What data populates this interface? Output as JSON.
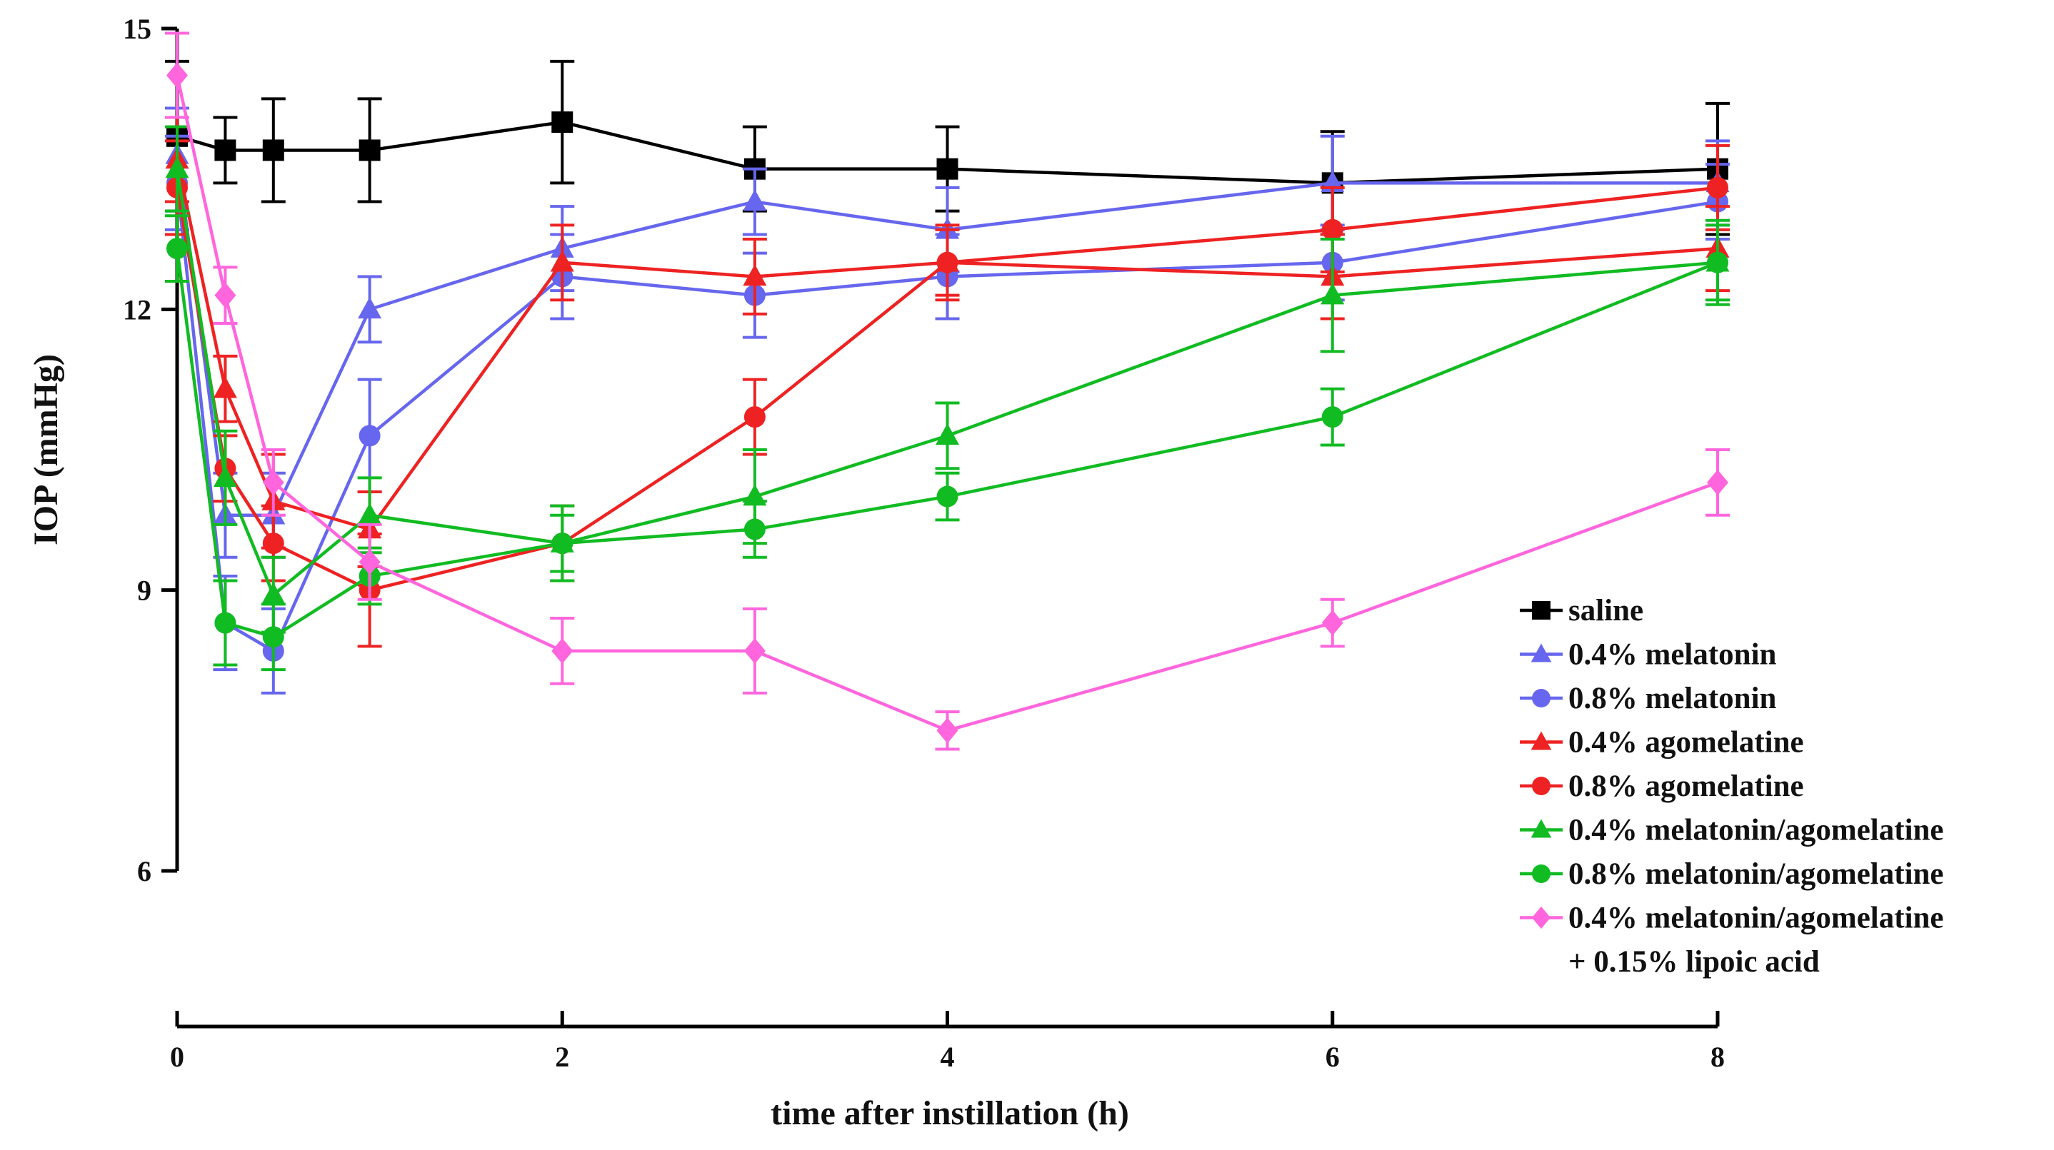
{
  "chart_data": {
    "type": "line",
    "title": "",
    "xlabel": "time after instillation (h)",
    "ylabel": "IOP (mmHg)",
    "xlim": [
      0,
      8
    ],
    "ylim": [
      6,
      15
    ],
    "x_ticks": [
      0,
      2,
      4,
      6,
      8
    ],
    "y_ticks": [
      6,
      9,
      12,
      15
    ],
    "grid": false,
    "legend_position": "bottom-right",
    "x": [
      0,
      0.25,
      0.5,
      1,
      2,
      3,
      4,
      6,
      8
    ],
    "series": [
      {
        "name": "saline",
        "color": "#000000",
        "marker": "square",
        "values": [
          13.85,
          13.7,
          13.7,
          13.7,
          14.0,
          13.5,
          13.5,
          13.35,
          13.5
        ],
        "errors": [
          0.8,
          0.35,
          0.55,
          0.55,
          0.65,
          0.45,
          0.45,
          0.55,
          0.7
        ]
      },
      {
        "name": "0.4% melatonin",
        "color": "#6666EE",
        "marker": "triangle",
        "values": [
          13.65,
          9.8,
          9.8,
          12.0,
          12.65,
          13.15,
          12.85,
          13.35,
          13.35
        ],
        "errors": [
          0.5,
          0.45,
          0.45,
          0.35,
          0.45,
          0.35,
          0.45,
          0.5,
          0.45
        ]
      },
      {
        "name": "0.8% melatonin",
        "color": "#6666EE",
        "marker": "circle",
        "values": [
          13.35,
          8.65,
          8.35,
          10.65,
          12.35,
          12.15,
          12.35,
          12.5,
          13.15
        ],
        "errors": [
          0.5,
          0.5,
          0.45,
          0.6,
          0.45,
          0.45,
          0.45,
          0.4,
          0.4
        ]
      },
      {
        "name": "0.4% agomelatine",
        "color": "#EE2222",
        "marker": "triangle",
        "values": [
          13.6,
          11.15,
          9.95,
          9.65,
          12.5,
          12.35,
          12.5,
          12.35,
          12.65
        ],
        "errors": [
          0.45,
          0.35,
          0.5,
          0.4,
          0.4,
          0.4,
          0.4,
          0.45,
          0.45
        ]
      },
      {
        "name": "0.8% agomelatine",
        "color": "#EE2222",
        "marker": "circle",
        "values": [
          13.3,
          10.3,
          9.5,
          9.0,
          9.5,
          10.85,
          12.5,
          12.85,
          13.3
        ],
        "errors": [
          0.5,
          0.35,
          0.4,
          0.6,
          0.4,
          0.4,
          0.35,
          0.45,
          0.45
        ]
      },
      {
        "name": "0.4% melatonin/agomelatine",
        "color": "#11BB22",
        "marker": "triangle",
        "values": [
          13.5,
          10.2,
          8.95,
          9.8,
          9.5,
          10.0,
          10.65,
          12.15,
          12.5
        ],
        "errors": [
          0.45,
          0.5,
          0.4,
          0.4,
          0.4,
          0.5,
          0.35,
          0.6,
          0.45
        ]
      },
      {
        "name": "0.8% melatonin/agomelatine",
        "color": "#11BB22",
        "marker": "circle",
        "values": [
          12.65,
          8.65,
          8.5,
          9.15,
          9.5,
          9.65,
          10.0,
          10.85,
          12.5
        ],
        "errors": [
          0.35,
          0.45,
          0.35,
          0.3,
          0.3,
          0.3,
          0.25,
          0.3,
          0.4
        ]
      },
      {
        "name": "0.4% melatonin/agomelatine\n+ 0.15% lipoic acid",
        "color": "#FF66DD",
        "marker": "diamond",
        "values": [
          14.5,
          12.15,
          10.15,
          9.3,
          8.35,
          8.35,
          7.5,
          8.65,
          10.15
        ],
        "errors": [
          0.45,
          0.3,
          0.35,
          0.4,
          0.35,
          0.45,
          0.2,
          0.25,
          0.35
        ]
      }
    ]
  }
}
